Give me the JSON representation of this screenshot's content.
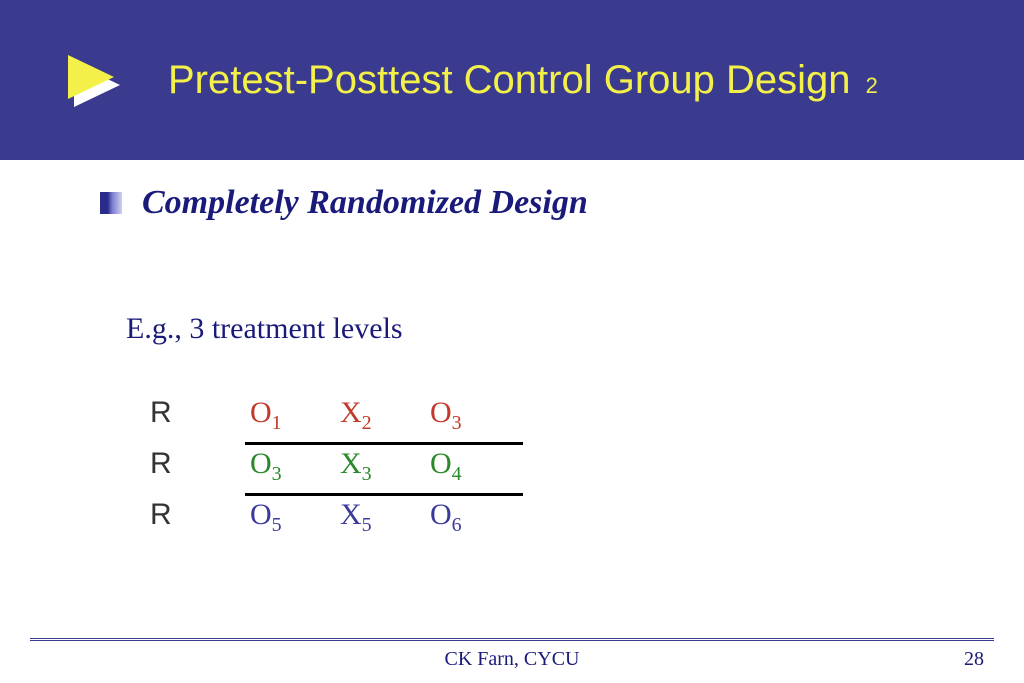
{
  "header": {
    "title_main": "Pretest-Posttest Control Group Design",
    "title_suffix": "2",
    "bg_color": "#3a3b8e",
    "title_color": "#f4f04a",
    "triangle_color": "#f4f04a",
    "triangle_shadow_color": "#ffffff"
  },
  "content": {
    "heading": "Completely Randomized Design",
    "heading_color": "#1a1a7a",
    "subheading": "E.g., 3 treatment levels",
    "subheading_color": "#1a1a7a"
  },
  "design": {
    "rows": [
      {
        "label": "R",
        "o_pre": "O",
        "o_pre_sub": "1",
        "x": "X",
        "x_sub": "2",
        "o_post": "O",
        "o_post_sub": "3",
        "color": "#c23a2a"
      },
      {
        "label": "R",
        "o_pre": "O",
        "o_pre_sub": "3",
        "x": "X",
        "x_sub": "3",
        "o_post": "O",
        "o_post_sub": "4",
        "color": "#2a8a2a"
      },
      {
        "label": "R",
        "o_pre": "O",
        "o_pre_sub": "5",
        "x": "X",
        "x_sub": "5",
        "o_post": "O",
        "o_post_sub": "6",
        "color": "#3a3a9a"
      }
    ],
    "label_color": "#333333",
    "divider_color": "#000000"
  },
  "footer": {
    "center": "CK Farn, CYCU",
    "page": "28",
    "line_color": "#3a3b8e",
    "text_color": "#1a1a7a"
  }
}
